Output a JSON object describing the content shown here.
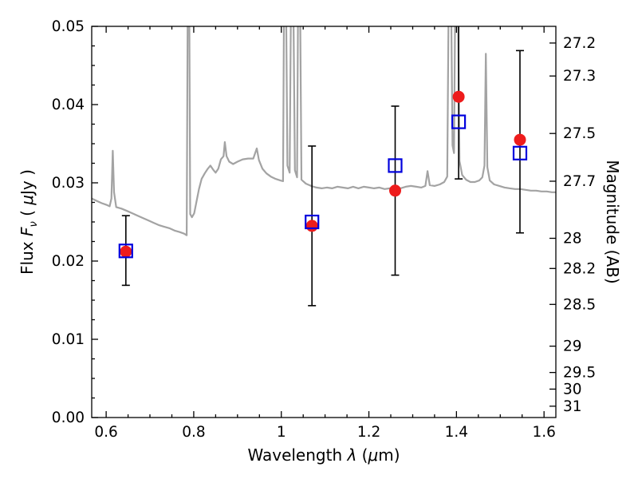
{
  "figure": {
    "background": "#ffffff",
    "axes_color": "#000000",
    "spectrum_color": "#a3a3a3",
    "data_point_color": "#ee1c1c",
    "model_point_color": "#0000dd",
    "error_bar_color": "#000000"
  },
  "chart_data": {
    "type": "line+scatter",
    "title": "",
    "xlabel": {
      "prefix": "Wavelength ",
      "symbol": "λ",
      "open": " (",
      "mu": "μ",
      "close": "m)"
    },
    "ylabel_left": {
      "prefix": "Flux ",
      "symbol": "F",
      "subscript": "ν",
      "open": " ( ",
      "mu": "μ",
      "close": "Jy )"
    },
    "ylabel_right": "Magnitude (AB)",
    "xlim": [
      0.567,
      1.627
    ],
    "ylim": [
      0.0,
      0.05
    ],
    "x_ticks": [
      {
        "value": 0.6,
        "label": "0.6"
      },
      {
        "value": 0.8,
        "label": "0.8"
      },
      {
        "value": 1.0,
        "label": "1"
      },
      {
        "value": 1.2,
        "label": "1.2"
      },
      {
        "value": 1.4,
        "label": "1.4"
      },
      {
        "value": 1.6,
        "label": "1.6"
      }
    ],
    "x_minor_step": 0.05,
    "y_ticks_left": [
      {
        "value": 0.0,
        "label": "0.00"
      },
      {
        "value": 0.01,
        "label": "0.01"
      },
      {
        "value": 0.02,
        "label": "0.02"
      },
      {
        "value": 0.03,
        "label": "0.03"
      },
      {
        "value": 0.04,
        "label": "0.04"
      },
      {
        "value": 0.05,
        "label": "0.05"
      }
    ],
    "y_minor_step_left": 0.0025,
    "y_ticks_right": {
      "ab_zeropoint": 23.9,
      "mags": [
        27.2,
        27.3,
        27.5,
        27.7,
        28,
        28.2,
        28.5,
        29,
        29.5,
        30,
        31
      ],
      "labels": [
        "27.2",
        "27.3",
        "27.5",
        "27.7",
        "28",
        "28.2",
        "28.5",
        "29",
        "29.5",
        "30",
        "31"
      ]
    },
    "photometry": {
      "x": [
        0.645,
        1.07,
        1.26,
        1.405,
        1.545
      ],
      "flux": [
        0.0212,
        0.0245,
        0.029,
        0.041,
        0.0355
      ],
      "err_lo": [
        0.0169,
        0.0143,
        0.0182,
        0.0305,
        0.0236
      ],
      "err_hi": [
        0.0258,
        0.0347,
        0.0398,
        0.052,
        0.0469
      ],
      "model_flux": [
        0.0213,
        0.025,
        0.0322,
        0.0378,
        0.0338
      ]
    },
    "spectrum": [
      [
        0.567,
        0.028
      ],
      [
        0.578,
        0.0277
      ],
      [
        0.59,
        0.0274
      ],
      [
        0.6,
        0.0272
      ],
      [
        0.608,
        0.027
      ],
      [
        0.612,
        0.028
      ],
      [
        0.615,
        0.0341
      ],
      [
        0.618,
        0.0288
      ],
      [
        0.623,
        0.0269
      ],
      [
        0.635,
        0.0267
      ],
      [
        0.648,
        0.0264
      ],
      [
        0.66,
        0.0261
      ],
      [
        0.672,
        0.0258
      ],
      [
        0.684,
        0.0255
      ],
      [
        0.696,
        0.0252
      ],
      [
        0.708,
        0.0249
      ],
      [
        0.72,
        0.0246
      ],
      [
        0.732,
        0.0244
      ],
      [
        0.744,
        0.0242
      ],
      [
        0.756,
        0.0239
      ],
      [
        0.768,
        0.0237
      ],
      [
        0.778,
        0.0235
      ],
      [
        0.784,
        0.0233
      ],
      [
        0.7865,
        0.056
      ],
      [
        0.7895,
        0.056
      ],
      [
        0.792,
        0.026
      ],
      [
        0.796,
        0.0256
      ],
      [
        0.801,
        0.0261
      ],
      [
        0.806,
        0.0275
      ],
      [
        0.812,
        0.0292
      ],
      [
        0.818,
        0.0305
      ],
      [
        0.825,
        0.0312
      ],
      [
        0.832,
        0.0318
      ],
      [
        0.838,
        0.0322
      ],
      [
        0.844,
        0.0317
      ],
      [
        0.85,
        0.0313
      ],
      [
        0.856,
        0.0318
      ],
      [
        0.862,
        0.033
      ],
      [
        0.868,
        0.0334
      ],
      [
        0.871,
        0.0352
      ],
      [
        0.875,
        0.0334
      ],
      [
        0.881,
        0.0327
      ],
      [
        0.89,
        0.0324
      ],
      [
        0.9,
        0.0327
      ],
      [
        0.912,
        0.033
      ],
      [
        0.924,
        0.0331
      ],
      [
        0.936,
        0.0331
      ],
      [
        0.944,
        0.0344
      ],
      [
        0.949,
        0.0329
      ],
      [
        0.957,
        0.0318
      ],
      [
        0.966,
        0.0312
      ],
      [
        0.976,
        0.0308
      ],
      [
        0.987,
        0.0305
      ],
      [
        0.998,
        0.0303
      ],
      [
        1.004,
        0.0302
      ],
      [
        1.0065,
        0.056
      ],
      [
        1.0105,
        0.056
      ],
      [
        1.014,
        0.0322
      ],
      [
        1.019,
        0.0313
      ],
      [
        1.0225,
        0.056
      ],
      [
        1.027,
        0.056
      ],
      [
        1.031,
        0.0316
      ],
      [
        1.036,
        0.0307
      ],
      [
        1.0385,
        0.056
      ],
      [
        1.0425,
        0.056
      ],
      [
        1.046,
        0.0304
      ],
      [
        1.056,
        0.0299
      ],
      [
        1.068,
        0.0296
      ],
      [
        1.08,
        0.0294
      ],
      [
        1.092,
        0.0293
      ],
      [
        1.104,
        0.0294
      ],
      [
        1.116,
        0.0293
      ],
      [
        1.128,
        0.0295
      ],
      [
        1.14,
        0.0294
      ],
      [
        1.152,
        0.0293
      ],
      [
        1.164,
        0.0295
      ],
      [
        1.176,
        0.0293
      ],
      [
        1.188,
        0.0295
      ],
      [
        1.2,
        0.0294
      ],
      [
        1.212,
        0.0293
      ],
      [
        1.224,
        0.0294
      ],
      [
        1.236,
        0.0292
      ],
      [
        1.248,
        0.0293
      ],
      [
        1.26,
        0.0294
      ],
      [
        1.272,
        0.0293
      ],
      [
        1.284,
        0.0295
      ],
      [
        1.296,
        0.0296
      ],
      [
        1.308,
        0.0295
      ],
      [
        1.32,
        0.0294
      ],
      [
        1.329,
        0.0296
      ],
      [
        1.334,
        0.0315
      ],
      [
        1.339,
        0.0297
      ],
      [
        1.35,
        0.0296
      ],
      [
        1.362,
        0.0298
      ],
      [
        1.372,
        0.0301
      ],
      [
        1.379,
        0.0308
      ],
      [
        1.3825,
        0.056
      ],
      [
        1.3875,
        0.056
      ],
      [
        1.391,
        0.0348
      ],
      [
        1.3945,
        0.0338
      ],
      [
        1.3975,
        0.056
      ],
      [
        1.403,
        0.056
      ],
      [
        1.407,
        0.0328
      ],
      [
        1.413,
        0.031
      ],
      [
        1.422,
        0.0304
      ],
      [
        1.432,
        0.0301
      ],
      [
        1.442,
        0.0301
      ],
      [
        1.452,
        0.0303
      ],
      [
        1.459,
        0.0307
      ],
      [
        1.464,
        0.0322
      ],
      [
        1.467,
        0.0465
      ],
      [
        1.4705,
        0.032
      ],
      [
        1.476,
        0.0303
      ],
      [
        1.486,
        0.0298
      ],
      [
        1.498,
        0.0296
      ],
      [
        1.51,
        0.0294
      ],
      [
        1.522,
        0.0293
      ],
      [
        1.534,
        0.0292
      ],
      [
        1.546,
        0.0292
      ],
      [
        1.558,
        0.0291
      ],
      [
        1.57,
        0.029
      ],
      [
        1.582,
        0.029
      ],
      [
        1.594,
        0.0289
      ],
      [
        1.606,
        0.0289
      ],
      [
        1.618,
        0.0288
      ],
      [
        1.627,
        0.0288
      ]
    ]
  }
}
